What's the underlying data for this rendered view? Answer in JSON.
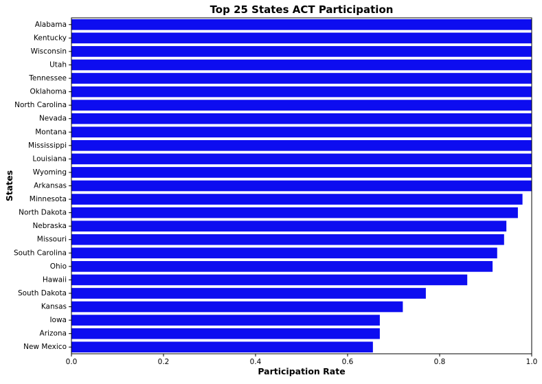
{
  "chart_data": {
    "type": "bar",
    "orientation": "horizontal",
    "title": "Top 25 States ACT Participation",
    "xlabel": "Participation Rate",
    "ylabel": "States",
    "xlim": [
      0,
      1
    ],
    "xticks": [
      "0.0",
      "0.2",
      "0.4",
      "0.6",
      "0.8",
      "1.0"
    ],
    "grid": false,
    "bar_color": "#0d0df0",
    "categories": [
      "Alabama",
      "Kentucky",
      "Wisconsin",
      "Utah",
      "Tennessee",
      "Oklahoma",
      "North Carolina",
      "Nevada",
      "Montana",
      "Mississippi",
      "Louisiana",
      "Wyoming",
      "Arkansas",
      "Minnesota",
      "North Dakota",
      "Nebraska",
      "Missouri",
      "South Carolina",
      "Ohio",
      "Hawaii",
      "South Dakota",
      "Kansas",
      "Iowa",
      "Arizona",
      "New Mexico"
    ],
    "values": [
      1.0,
      1.0,
      1.0,
      1.0,
      1.0,
      1.0,
      1.0,
      1.0,
      1.0,
      1.0,
      1.0,
      1.0,
      1.0,
      0.98,
      0.97,
      0.945,
      0.94,
      0.925,
      0.915,
      0.86,
      0.77,
      0.72,
      0.67,
      0.67,
      0.655
    ]
  }
}
